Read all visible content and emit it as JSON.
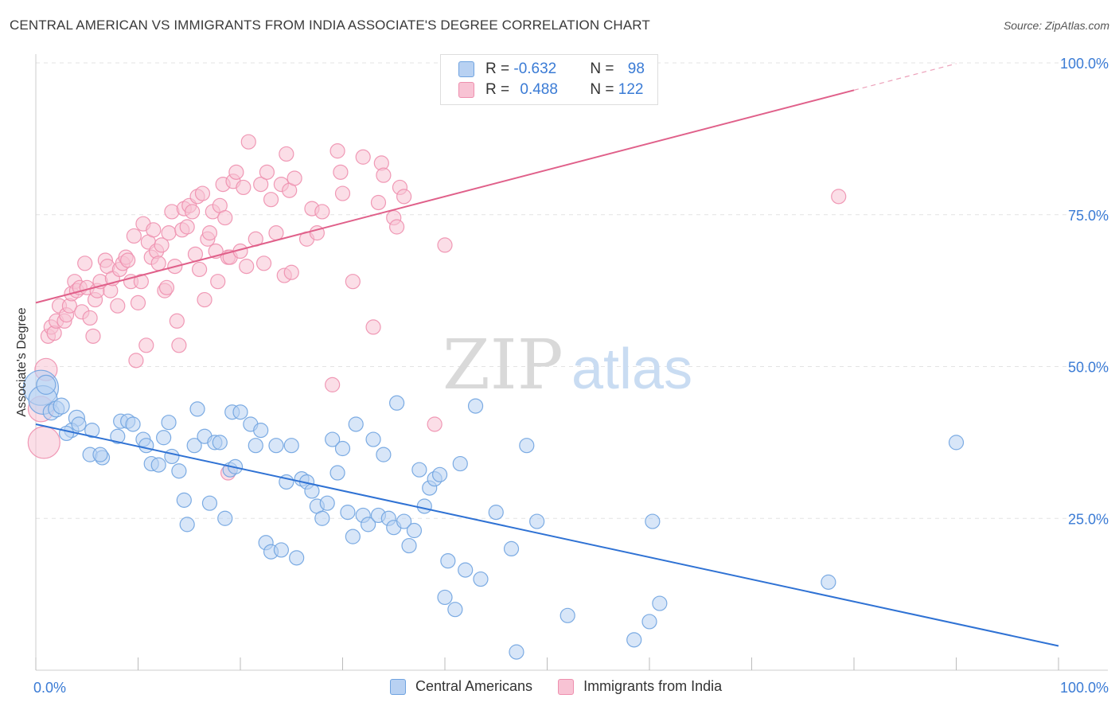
{
  "title": "CENTRAL AMERICAN VS IMMIGRANTS FROM INDIA ASSOCIATE'S DEGREE CORRELATION CHART",
  "source": "Source: ZipAtlas.com",
  "watermark": {
    "zip": "ZIP",
    "atlas": "atlas"
  },
  "colors": {
    "blue": "#6fa3e0",
    "blue_fill": "#b8d1f2",
    "blue_line": "#2f72d4",
    "pink": "#ee8fae",
    "pink_fill": "#f8c3d4",
    "pink_line": "#e0608a",
    "tick_text": "#3a7bd5",
    "grid": "#e3e3e3"
  },
  "legend": {
    "row1": {
      "r_label": "R = ",
      "r_value": "-0.632",
      "n_label": "N = ",
      "n_value": "98"
    },
    "row2": {
      "r_label": "R = ",
      "r_value": "0.488",
      "n_label": "N = ",
      "n_value": "122"
    }
  },
  "chart_data": {
    "type": "scatter",
    "title": "CENTRAL AMERICAN VS IMMIGRANTS FROM INDIA ASSOCIATE'S DEGREE CORRELATION CHART",
    "xlabel": "",
    "ylabel": "Associate's Degree",
    "xlim": [
      0,
      100
    ],
    "ylim": [
      0,
      100
    ],
    "x_tick_labels": [
      "0.0%",
      "100.0%"
    ],
    "y_tick_labels": [
      "25.0%",
      "50.0%",
      "75.0%",
      "100.0%"
    ],
    "y_ticks": [
      25,
      50,
      75,
      100
    ],
    "grid": true,
    "legend_position": "bottom",
    "series": [
      {
        "name": "Central Americans",
        "color": "#6fa3e0",
        "r": -0.632,
        "n": 98,
        "trend": {
          "x0": 0,
          "y0": 40.5,
          "x1": 100,
          "y1": 4
        },
        "points": [
          [
            0.5,
            46.5,
            22
          ],
          [
            0.7,
            44.5,
            18
          ],
          [
            1,
            47,
            12
          ],
          [
            1.5,
            42.5,
            10
          ],
          [
            2,
            43,
            10
          ],
          [
            2.5,
            43.5,
            10
          ],
          [
            4,
            41.5,
            10
          ],
          [
            3.5,
            39.5,
            9
          ],
          [
            4.2,
            40.5,
            9
          ],
          [
            3,
            39,
            9
          ],
          [
            5.5,
            39.5,
            9
          ],
          [
            5.3,
            35.5,
            9
          ],
          [
            6.5,
            35,
            9
          ],
          [
            6.3,
            35.5,
            9
          ],
          [
            8,
            38.5,
            9
          ],
          [
            8.3,
            41,
            9
          ],
          [
            9,
            41,
            9
          ],
          [
            9.5,
            40.5,
            9
          ],
          [
            10.5,
            38,
            9
          ],
          [
            10.8,
            37,
            9
          ],
          [
            11.3,
            34,
            9
          ],
          [
            12,
            33.8,
            9
          ],
          [
            12.5,
            38.3,
            9
          ],
          [
            13,
            40.8,
            9
          ],
          [
            13.3,
            35.2,
            9
          ],
          [
            14,
            32.8,
            9
          ],
          [
            14.5,
            28,
            9
          ],
          [
            14.8,
            24,
            9
          ],
          [
            15.5,
            37,
            9
          ],
          [
            15.8,
            43,
            9
          ],
          [
            16.5,
            38.5,
            9
          ],
          [
            17,
            27.5,
            9
          ],
          [
            17.5,
            37.5,
            9
          ],
          [
            18,
            37.5,
            9
          ],
          [
            18.5,
            25,
            9
          ],
          [
            19,
            33,
            9
          ],
          [
            19.2,
            42.5,
            9
          ],
          [
            20,
            42.5,
            9
          ],
          [
            19.5,
            33.5,
            9
          ],
          [
            21,
            40.5,
            9
          ],
          [
            21.5,
            37,
            9
          ],
          [
            22,
            39.5,
            9
          ],
          [
            22.5,
            21,
            9
          ],
          [
            23,
            19.5,
            9
          ],
          [
            23.5,
            37,
            9
          ],
          [
            24,
            19.8,
            9
          ],
          [
            24.5,
            31,
            9
          ],
          [
            25,
            37,
            9
          ],
          [
            25.5,
            18.5,
            9
          ],
          [
            26,
            31.5,
            9
          ],
          [
            26.5,
            31,
            9
          ],
          [
            27,
            29.5,
            9
          ],
          [
            27.5,
            27,
            9
          ],
          [
            28,
            25,
            9
          ],
          [
            28.5,
            27.5,
            9
          ],
          [
            29,
            38,
            9
          ],
          [
            29.5,
            32.5,
            9
          ],
          [
            30,
            36.5,
            9
          ],
          [
            30.5,
            26,
            9
          ],
          [
            31,
            22,
            9
          ],
          [
            31.3,
            40.5,
            9
          ],
          [
            32,
            25.5,
            9
          ],
          [
            32.5,
            24,
            9
          ],
          [
            33,
            38,
            9
          ],
          [
            33.5,
            25.5,
            9
          ],
          [
            34,
            35.5,
            9
          ],
          [
            34.5,
            25,
            9
          ],
          [
            35,
            23.5,
            9
          ],
          [
            35.3,
            44,
            9
          ],
          [
            36,
            24.5,
            9
          ],
          [
            36.5,
            20.5,
            9
          ],
          [
            37,
            23,
            9
          ],
          [
            37.5,
            33,
            9
          ],
          [
            38,
            27,
            9
          ],
          [
            38.5,
            30,
            9
          ],
          [
            39,
            31.5,
            9
          ],
          [
            39.5,
            32.2,
            9
          ],
          [
            40,
            12,
            9
          ],
          [
            40.3,
            18,
            9
          ],
          [
            41,
            10,
            9
          ],
          [
            41.5,
            34,
            9
          ],
          [
            42,
            16.5,
            9
          ],
          [
            43,
            43.5,
            9
          ],
          [
            43.5,
            15,
            9
          ],
          [
            45,
            26,
            9
          ],
          [
            46.5,
            20,
            9
          ],
          [
            47,
            3,
            9
          ],
          [
            48,
            37,
            9
          ],
          [
            49,
            24.5,
            9
          ],
          [
            52,
            9,
            9
          ],
          [
            58.5,
            5,
            9
          ],
          [
            60,
            8,
            9
          ],
          [
            60.3,
            24.5,
            9
          ],
          [
            61,
            11,
            9
          ],
          [
            77.5,
            14.5,
            9
          ],
          [
            90,
            37.5,
            9
          ]
        ]
      },
      {
        "name": "Immigrants from India",
        "color": "#ee8fae",
        "r": 0.488,
        "n": 122,
        "trend": {
          "x0": 0,
          "y0": 60.5,
          "x1": 80,
          "y1": 95.5,
          "dash_to": [
            90,
            100
          ]
        },
        "points": [
          [
            0.5,
            43,
            16
          ],
          [
            0.8,
            37.5,
            20
          ],
          [
            1,
            49.5,
            14
          ],
          [
            1.2,
            55,
            9
          ],
          [
            1.5,
            56.5,
            9
          ],
          [
            1.8,
            55.5,
            9
          ],
          [
            2,
            57.5,
            9
          ],
          [
            2.3,
            60,
            9
          ],
          [
            2.8,
            57.5,
            9
          ],
          [
            3,
            58.5,
            9
          ],
          [
            3.3,
            60,
            9
          ],
          [
            3.5,
            62,
            9
          ],
          [
            3.8,
            64,
            9
          ],
          [
            4,
            62.5,
            9
          ],
          [
            4.3,
            63,
            9
          ],
          [
            4.5,
            59,
            9
          ],
          [
            4.8,
            67,
            9
          ],
          [
            5,
            63,
            9
          ],
          [
            5.3,
            58,
            9
          ],
          [
            5.6,
            55,
            9
          ],
          [
            5.8,
            61,
            9
          ],
          [
            6,
            62.5,
            9
          ],
          [
            6.3,
            64,
            9
          ],
          [
            6.8,
            67.5,
            9
          ],
          [
            7,
            66.5,
            9
          ],
          [
            7.3,
            62.5,
            9
          ],
          [
            7.5,
            64.5,
            9
          ],
          [
            8,
            60,
            9
          ],
          [
            8.2,
            66,
            9
          ],
          [
            8.5,
            67,
            9
          ],
          [
            8.8,
            68,
            9
          ],
          [
            9,
            67.5,
            9
          ],
          [
            9.3,
            64,
            9
          ],
          [
            9.6,
            71.5,
            9
          ],
          [
            9.8,
            51,
            9
          ],
          [
            10,
            60.5,
            9
          ],
          [
            10.3,
            64,
            9
          ],
          [
            10.5,
            73.5,
            9
          ],
          [
            10.8,
            53.5,
            9
          ],
          [
            11,
            70.5,
            9
          ],
          [
            11.3,
            68,
            9
          ],
          [
            11.5,
            72.5,
            9
          ],
          [
            11.8,
            69,
            9
          ],
          [
            12,
            67,
            9
          ],
          [
            12.3,
            70,
            9
          ],
          [
            12.6,
            62.5,
            9
          ],
          [
            12.8,
            63,
            9
          ],
          [
            13,
            72,
            9
          ],
          [
            13.3,
            75.5,
            9
          ],
          [
            13.6,
            66.5,
            9
          ],
          [
            13.8,
            57.5,
            9
          ],
          [
            14,
            53.5,
            9
          ],
          [
            14.3,
            72.5,
            9
          ],
          [
            14.5,
            76,
            9
          ],
          [
            14.8,
            73,
            9
          ],
          [
            15,
            76.5,
            9
          ],
          [
            15.3,
            75.5,
            9
          ],
          [
            15.6,
            68.5,
            9
          ],
          [
            15.8,
            78,
            9
          ],
          [
            16,
            66,
            9
          ],
          [
            16.3,
            78.5,
            9
          ],
          [
            16.5,
            61,
            9
          ],
          [
            16.8,
            71,
            9
          ],
          [
            17,
            72,
            9
          ],
          [
            17.3,
            75.5,
            9
          ],
          [
            17.6,
            69,
            9
          ],
          [
            17.8,
            64,
            9
          ],
          [
            18,
            76.5,
            9
          ],
          [
            18.3,
            80,
            9
          ],
          [
            18.5,
            74.5,
            9
          ],
          [
            18.8,
            68,
            9
          ],
          [
            19,
            68,
            9
          ],
          [
            19.3,
            80.5,
            9
          ],
          [
            19.6,
            82,
            9
          ],
          [
            20,
            69,
            9
          ],
          [
            20.3,
            79.5,
            9
          ],
          [
            20.6,
            66.5,
            9
          ],
          [
            20.8,
            87,
            9
          ],
          [
            21.5,
            71,
            9
          ],
          [
            22,
            80,
            9
          ],
          [
            22.3,
            67,
            9
          ],
          [
            22.6,
            82,
            9
          ],
          [
            23,
            77.5,
            9
          ],
          [
            23.5,
            72,
            9
          ],
          [
            24,
            80,
            9
          ],
          [
            24.3,
            65,
            9
          ],
          [
            24.5,
            85,
            9
          ],
          [
            24.8,
            79,
            9
          ],
          [
            25,
            65.5,
            9
          ],
          [
            25.3,
            81,
            9
          ],
          [
            26.5,
            71,
            9
          ],
          [
            27,
            76,
            9
          ],
          [
            27.5,
            72,
            9
          ],
          [
            28,
            75.5,
            9
          ],
          [
            29,
            47,
            9
          ],
          [
            29.5,
            85.5,
            9
          ],
          [
            29.8,
            82,
            9
          ],
          [
            30,
            78.5,
            9
          ],
          [
            31,
            64,
            9
          ],
          [
            32,
            84.5,
            9
          ],
          [
            33,
            56.5,
            9
          ],
          [
            33.5,
            77,
            9
          ],
          [
            33.8,
            83.5,
            9
          ],
          [
            34,
            81.5,
            9
          ],
          [
            35,
            74.5,
            9
          ],
          [
            35.3,
            73,
            9
          ],
          [
            35.6,
            79.5,
            9
          ],
          [
            36,
            78,
            9
          ],
          [
            39,
            40.5,
            9
          ],
          [
            40,
            70,
            9
          ],
          [
            18.8,
            32.5,
            9
          ],
          [
            78.5,
            78,
            9
          ]
        ]
      }
    ]
  }
}
